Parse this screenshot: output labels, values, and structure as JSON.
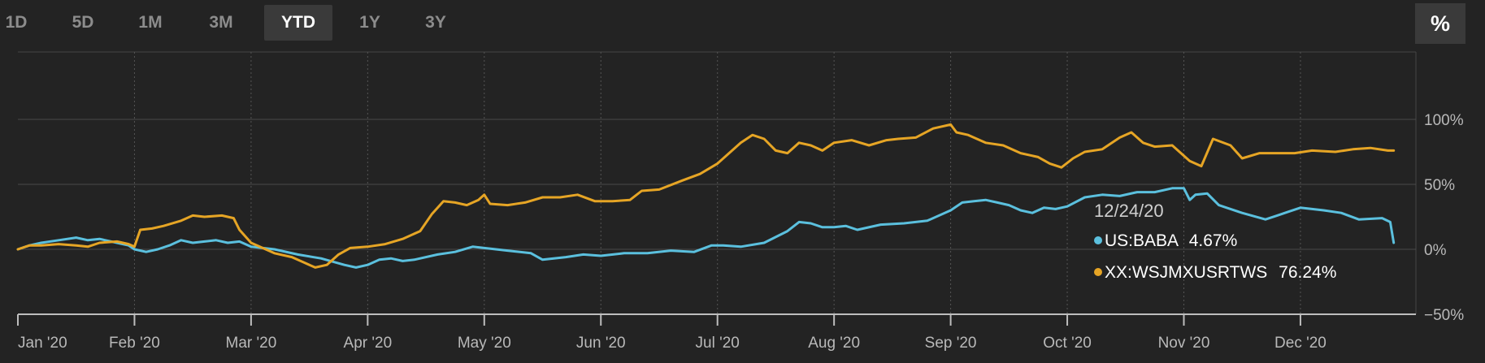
{
  "toolbar": {
    "ranges": [
      "1D",
      "5D",
      "1M",
      "3M",
      "YTD",
      "1Y",
      "3Y"
    ],
    "active_range": "YTD",
    "percent_toggle": "%"
  },
  "tooltip": {
    "date": "12/24/20",
    "rows": [
      {
        "symbol": "US:BABA",
        "value": "4.67%"
      },
      {
        "symbol": "XX:WSJMXUSRTWS",
        "value": "76.24%"
      }
    ]
  },
  "chart_data": {
    "type": "line",
    "x_ticks": [
      "Jan '20",
      "Feb '20",
      "Mar '20",
      "Apr '20",
      "May '20",
      "Jun '20",
      "Jul '20",
      "Aug '20",
      "Sep '20",
      "Oct '20",
      "Nov '20",
      "Dec '20"
    ],
    "y_ticks": [
      "100%",
      "50%",
      "0%",
      "−50%"
    ],
    "y_tick_values": [
      100,
      50,
      0,
      -50
    ],
    "ylim": [
      -50,
      100
    ],
    "x_unit": "months since Jan 1 2020",
    "grid": true,
    "series": [
      {
        "name": "US:BABA",
        "color": "#5bc0de",
        "points": [
          [
            0.0,
            0
          ],
          [
            0.1,
            3
          ],
          [
            0.2,
            5
          ],
          [
            0.35,
            7
          ],
          [
            0.5,
            9
          ],
          [
            0.6,
            7
          ],
          [
            0.7,
            8
          ],
          [
            0.85,
            5
          ],
          [
            0.95,
            3
          ],
          [
            1.0,
            0
          ],
          [
            1.1,
            -2
          ],
          [
            1.2,
            0
          ],
          [
            1.3,
            3
          ],
          [
            1.4,
            7
          ],
          [
            1.5,
            5
          ],
          [
            1.6,
            6
          ],
          [
            1.7,
            7
          ],
          [
            1.8,
            5
          ],
          [
            1.9,
            6
          ],
          [
            2.0,
            2
          ],
          [
            2.2,
            0
          ],
          [
            2.4,
            -4
          ],
          [
            2.6,
            -7
          ],
          [
            2.8,
            -12
          ],
          [
            2.9,
            -14
          ],
          [
            3.0,
            -12
          ],
          [
            3.1,
            -8
          ],
          [
            3.2,
            -7
          ],
          [
            3.3,
            -9
          ],
          [
            3.4,
            -8
          ],
          [
            3.6,
            -4
          ],
          [
            3.75,
            -2
          ],
          [
            3.9,
            2
          ],
          [
            4.0,
            1
          ],
          [
            4.2,
            -1
          ],
          [
            4.4,
            -3
          ],
          [
            4.5,
            -8
          ],
          [
            4.7,
            -6
          ],
          [
            4.85,
            -4
          ],
          [
            5.0,
            -5
          ],
          [
            5.2,
            -3
          ],
          [
            5.4,
            -3
          ],
          [
            5.6,
            -1
          ],
          [
            5.8,
            -2
          ],
          [
            5.95,
            3
          ],
          [
            6.05,
            3
          ],
          [
            6.2,
            2
          ],
          [
            6.4,
            5
          ],
          [
            6.6,
            14
          ],
          [
            6.7,
            21
          ],
          [
            6.8,
            20
          ],
          [
            6.9,
            17
          ],
          [
            7.0,
            17
          ],
          [
            7.1,
            18
          ],
          [
            7.2,
            15
          ],
          [
            7.4,
            19
          ],
          [
            7.6,
            20
          ],
          [
            7.8,
            22
          ],
          [
            8.0,
            30
          ],
          [
            8.1,
            36
          ],
          [
            8.2,
            37
          ],
          [
            8.3,
            38
          ],
          [
            8.4,
            36
          ],
          [
            8.5,
            34
          ],
          [
            8.6,
            30
          ],
          [
            8.7,
            28
          ],
          [
            8.8,
            32
          ],
          [
            8.9,
            31
          ],
          [
            9.0,
            33
          ],
          [
            9.15,
            40
          ],
          [
            9.3,
            42
          ],
          [
            9.45,
            41
          ],
          [
            9.6,
            44
          ],
          [
            9.75,
            44
          ],
          [
            9.9,
            47
          ],
          [
            10.0,
            47
          ],
          [
            10.05,
            38
          ],
          [
            10.1,
            42
          ],
          [
            10.2,
            43
          ],
          [
            10.3,
            34
          ],
          [
            10.5,
            28
          ],
          [
            10.7,
            23
          ],
          [
            10.8,
            26
          ],
          [
            10.9,
            29
          ],
          [
            11.0,
            32
          ],
          [
            11.2,
            30
          ],
          [
            11.35,
            28
          ],
          [
            11.5,
            23
          ],
          [
            11.7,
            24
          ],
          [
            11.77,
            21
          ],
          [
            11.8,
            5
          ]
        ]
      },
      {
        "name": "XX:WSJMXUSRTWS",
        "color": "#e6a525",
        "points": [
          [
            0.0,
            0
          ],
          [
            0.1,
            3
          ],
          [
            0.2,
            3
          ],
          [
            0.35,
            4
          ],
          [
            0.5,
            3
          ],
          [
            0.6,
            2
          ],
          [
            0.7,
            5
          ],
          [
            0.85,
            6
          ],
          [
            0.95,
            4
          ],
          [
            1.0,
            2
          ],
          [
            1.05,
            15
          ],
          [
            1.15,
            16
          ],
          [
            1.25,
            18
          ],
          [
            1.4,
            22
          ],
          [
            1.5,
            26
          ],
          [
            1.6,
            25
          ],
          [
            1.75,
            26
          ],
          [
            1.85,
            24
          ],
          [
            1.9,
            15
          ],
          [
            2.0,
            5
          ],
          [
            2.2,
            -3
          ],
          [
            2.35,
            -6
          ],
          [
            2.45,
            -10
          ],
          [
            2.55,
            -14
          ],
          [
            2.65,
            -12
          ],
          [
            2.75,
            -4
          ],
          [
            2.85,
            1
          ],
          [
            3.0,
            2
          ],
          [
            3.15,
            4
          ],
          [
            3.3,
            8
          ],
          [
            3.45,
            14
          ],
          [
            3.55,
            27
          ],
          [
            3.65,
            37
          ],
          [
            3.75,
            36
          ],
          [
            3.85,
            34
          ],
          [
            3.95,
            38
          ],
          [
            4.0,
            42
          ],
          [
            4.05,
            35
          ],
          [
            4.2,
            34
          ],
          [
            4.35,
            36
          ],
          [
            4.5,
            40
          ],
          [
            4.65,
            40
          ],
          [
            4.8,
            42
          ],
          [
            4.95,
            37
          ],
          [
            5.1,
            37
          ],
          [
            5.25,
            38
          ],
          [
            5.35,
            45
          ],
          [
            5.5,
            46
          ],
          [
            5.7,
            53
          ],
          [
            5.85,
            58
          ],
          [
            6.0,
            66
          ],
          [
            6.1,
            74
          ],
          [
            6.2,
            82
          ],
          [
            6.3,
            88
          ],
          [
            6.4,
            85
          ],
          [
            6.5,
            76
          ],
          [
            6.6,
            74
          ],
          [
            6.7,
            82
          ],
          [
            6.8,
            80
          ],
          [
            6.9,
            76
          ],
          [
            7.0,
            82
          ],
          [
            7.15,
            84
          ],
          [
            7.3,
            80
          ],
          [
            7.45,
            84
          ],
          [
            7.55,
            85
          ],
          [
            7.7,
            86
          ],
          [
            7.85,
            93
          ],
          [
            8.0,
            96
          ],
          [
            8.05,
            90
          ],
          [
            8.15,
            88
          ],
          [
            8.3,
            82
          ],
          [
            8.45,
            80
          ],
          [
            8.6,
            74
          ],
          [
            8.75,
            71
          ],
          [
            8.85,
            66
          ],
          [
            8.95,
            63
          ],
          [
            9.05,
            70
          ],
          [
            9.15,
            75
          ],
          [
            9.3,
            77
          ],
          [
            9.45,
            86
          ],
          [
            9.55,
            90
          ],
          [
            9.65,
            82
          ],
          [
            9.75,
            79
          ],
          [
            9.9,
            80
          ],
          [
            10.05,
            68
          ],
          [
            10.15,
            64
          ],
          [
            10.25,
            85
          ],
          [
            10.4,
            80
          ],
          [
            10.5,
            70
          ],
          [
            10.65,
            74
          ],
          [
            10.8,
            74
          ],
          [
            10.95,
            74
          ],
          [
            11.1,
            76
          ],
          [
            11.3,
            75
          ],
          [
            11.45,
            77
          ],
          [
            11.6,
            78
          ],
          [
            11.75,
            76
          ],
          [
            11.8,
            76
          ]
        ]
      }
    ]
  }
}
